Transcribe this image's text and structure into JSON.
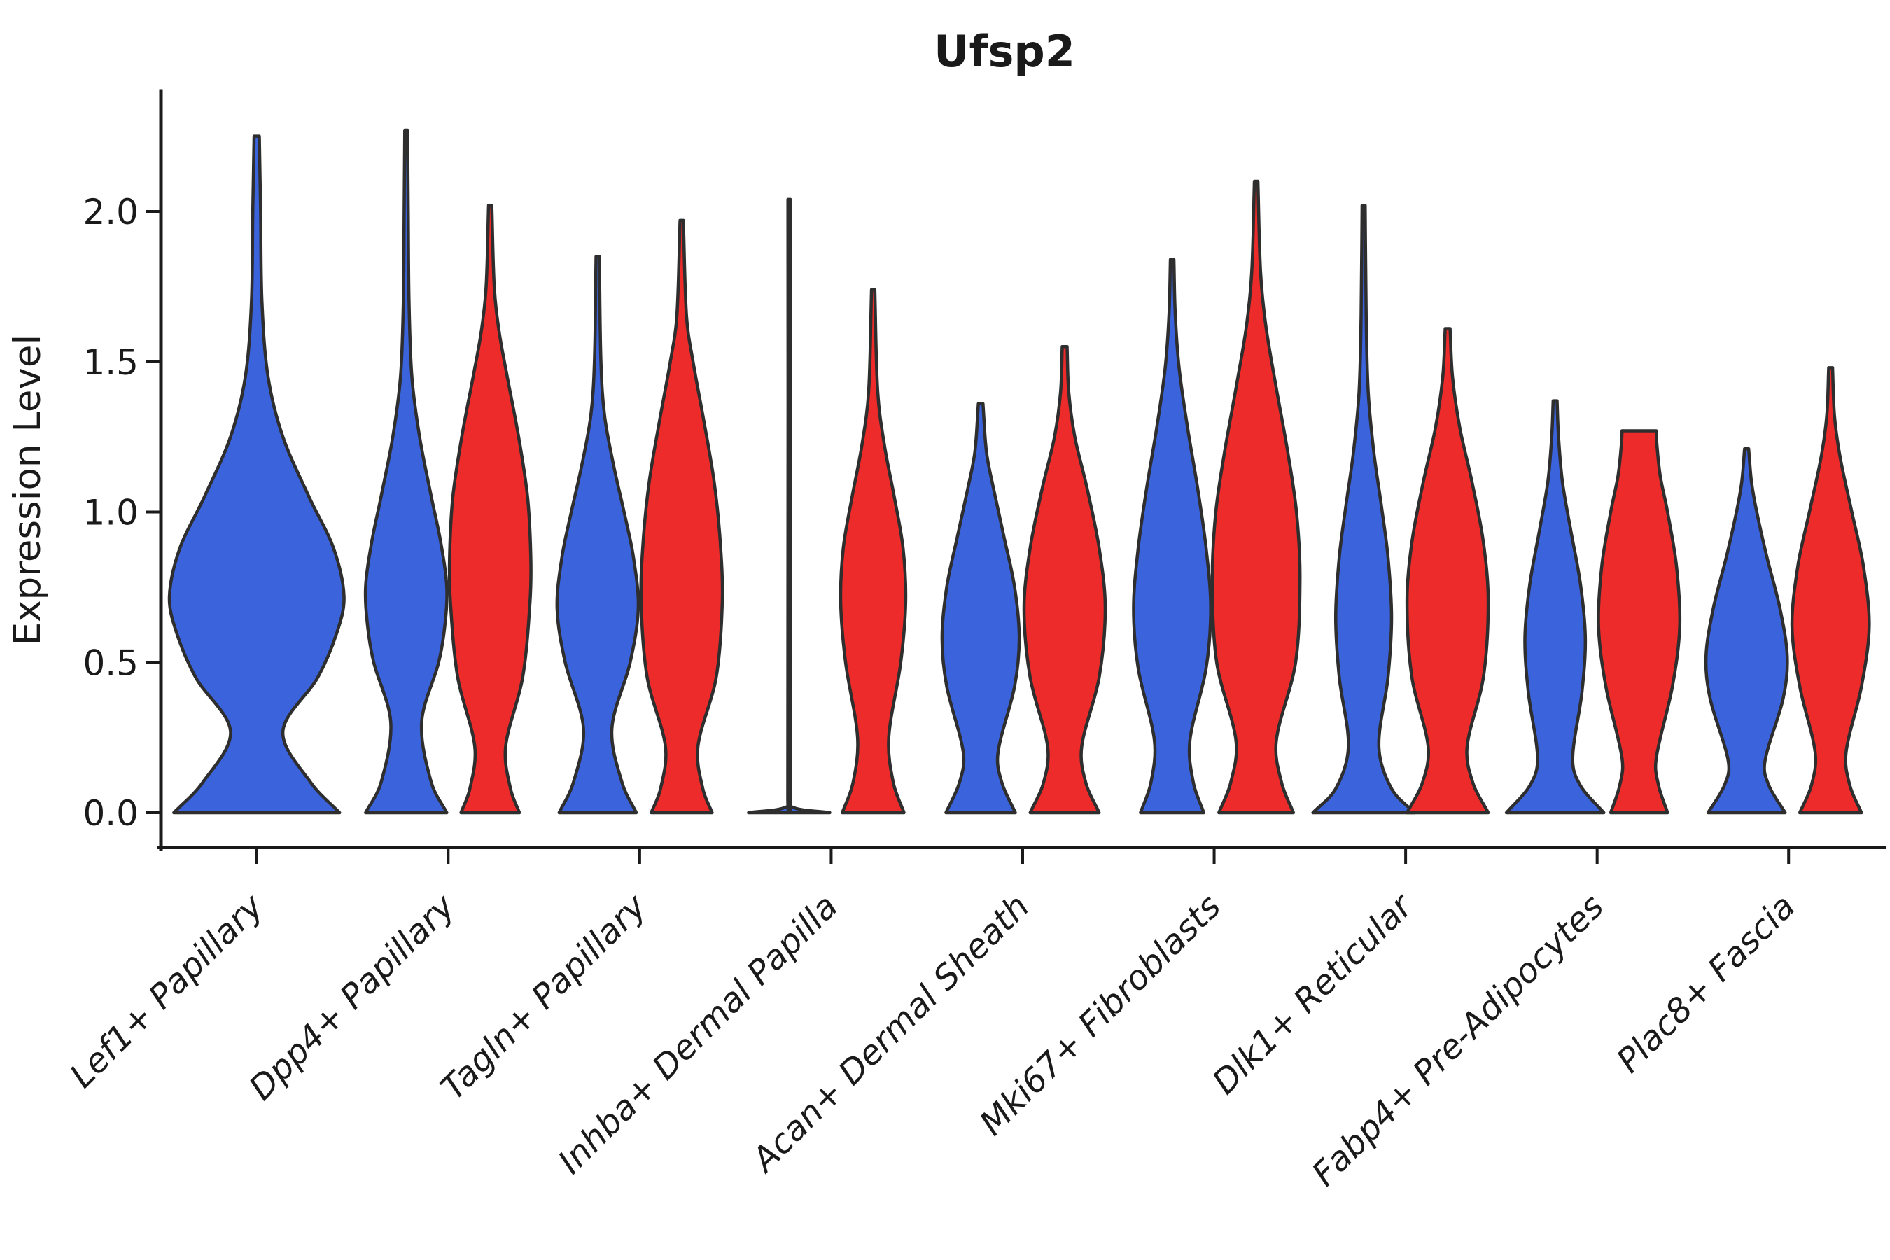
{
  "title": "Ufsp2",
  "axes": {
    "ylabel": "Expression Level",
    "y_ticks": [
      {
        "label": "0.0",
        "value": 0.0
      },
      {
        "label": "0.5",
        "value": 0.5
      },
      {
        "label": "1.0",
        "value": 1.0
      },
      {
        "label": "1.5",
        "value": 1.5
      },
      {
        "label": "2.0",
        "value": 2.0
      }
    ],
    "x_tick_rotation_deg": 45
  },
  "colors": {
    "series_blue": "#3B63DC",
    "series_red": "#EE2B2B",
    "outline": "#2e2e2e",
    "axis": "#1a1a1a"
  },
  "chart_data": {
    "type": "violin",
    "title": "Ufsp2",
    "ylabel": "Expression Level",
    "ylim": [
      0,
      2.42
    ],
    "grid": false,
    "legend": "none",
    "categories": [
      "Lef1+ Papillary",
      "Dpp4+ Papillary",
      "Tagln+ Papillary",
      "Inhba+ Dermal Papilla",
      "Acan+ Dermal Sheath",
      "Mki67+ Fibroblasts",
      "Dlk1+ Reticular",
      "Fabp4+ Pre-Adipocytes",
      "Plac8+ Fascia"
    ],
    "series_names": [
      "blue",
      "red"
    ],
    "violins": [
      {
        "category": "Lef1+ Papillary",
        "group_index": 0,
        "series": "a",
        "single": true,
        "width_scale": 2.15,
        "max_expression": 2.25,
        "profile": [
          [
            0,
            0.95
          ],
          [
            0.1,
            0.62
          ],
          [
            0.27,
            0.3
          ],
          [
            0.45,
            0.7
          ],
          [
            0.6,
            0.92
          ],
          [
            0.72,
            1.0
          ],
          [
            0.88,
            0.88
          ],
          [
            1.05,
            0.6
          ],
          [
            1.25,
            0.3
          ],
          [
            1.45,
            0.13
          ],
          [
            1.7,
            0.06
          ],
          [
            2.0,
            0.045
          ],
          [
            2.25,
            0.03
          ]
        ]
      },
      {
        "category": "Dpp4+ Papillary",
        "group_index": 1,
        "series": "a",
        "max_expression": 2.27,
        "profile": [
          [
            0,
            1.0
          ],
          [
            0.1,
            0.62
          ],
          [
            0.3,
            0.38
          ],
          [
            0.5,
            0.8
          ],
          [
            0.62,
            0.95
          ],
          [
            0.75,
            1.0
          ],
          [
            0.9,
            0.85
          ],
          [
            1.05,
            0.62
          ],
          [
            1.25,
            0.33
          ],
          [
            1.45,
            0.14
          ],
          [
            1.7,
            0.07
          ],
          [
            2.0,
            0.05
          ],
          [
            2.27,
            0.035
          ]
        ]
      },
      {
        "category": "Dpp4+ Papillary",
        "group_index": 1,
        "series": "b",
        "max_expression": 2.02,
        "profile": [
          [
            0,
            0.72
          ],
          [
            0.08,
            0.5
          ],
          [
            0.22,
            0.38
          ],
          [
            0.45,
            0.8
          ],
          [
            0.7,
            0.98
          ],
          [
            0.85,
            1.0
          ],
          [
            1.05,
            0.92
          ],
          [
            1.25,
            0.7
          ],
          [
            1.45,
            0.42
          ],
          [
            1.6,
            0.22
          ],
          [
            1.75,
            0.1
          ],
          [
            2.02,
            0.04
          ]
        ]
      },
      {
        "category": "Tagln+ Papillary",
        "group_index": 2,
        "series": "a",
        "max_expression": 1.85,
        "profile": [
          [
            0,
            0.95
          ],
          [
            0.1,
            0.6
          ],
          [
            0.28,
            0.35
          ],
          [
            0.5,
            0.8
          ],
          [
            0.68,
            1.0
          ],
          [
            0.85,
            0.88
          ],
          [
            1.0,
            0.65
          ],
          [
            1.15,
            0.4
          ],
          [
            1.32,
            0.17
          ],
          [
            1.5,
            0.08
          ],
          [
            1.85,
            0.04
          ]
        ]
      },
      {
        "category": "Tagln+ Papillary",
        "group_index": 2,
        "series": "b",
        "max_expression": 1.97,
        "profile": [
          [
            0,
            0.75
          ],
          [
            0.08,
            0.52
          ],
          [
            0.22,
            0.4
          ],
          [
            0.45,
            0.85
          ],
          [
            0.7,
            1.0
          ],
          [
            0.9,
            0.95
          ],
          [
            1.1,
            0.8
          ],
          [
            1.3,
            0.55
          ],
          [
            1.5,
            0.28
          ],
          [
            1.65,
            0.12
          ],
          [
            1.97,
            0.04
          ]
        ]
      },
      {
        "category": "Inhba+ Dermal Papilla",
        "group_index": 3,
        "series": "a",
        "degenerate": true,
        "max_expression": 2.04,
        "profile": [
          [
            0,
            1.0
          ],
          [
            0.018,
            0.1
          ],
          [
            0.06,
            0.034
          ],
          [
            2.04,
            0.03
          ]
        ]
      },
      {
        "category": "Inhba+ Dermal Papilla",
        "group_index": 3,
        "series": "b",
        "width_scale": 0.8,
        "max_expression": 1.74,
        "profile": [
          [
            0,
            0.95
          ],
          [
            0.1,
            0.62
          ],
          [
            0.25,
            0.48
          ],
          [
            0.5,
            0.85
          ],
          [
            0.7,
            1.0
          ],
          [
            0.88,
            0.92
          ],
          [
            1.05,
            0.65
          ],
          [
            1.22,
            0.35
          ],
          [
            1.4,
            0.14
          ],
          [
            1.74,
            0.05
          ]
        ]
      },
      {
        "category": "Acan+ Dermal Sheath",
        "group_index": 4,
        "series": "a",
        "width_scale": 0.95,
        "max_expression": 1.36,
        "profile": [
          [
            0,
            0.9
          ],
          [
            0.1,
            0.55
          ],
          [
            0.2,
            0.45
          ],
          [
            0.42,
            0.88
          ],
          [
            0.58,
            1.0
          ],
          [
            0.75,
            0.88
          ],
          [
            0.92,
            0.6
          ],
          [
            1.08,
            0.33
          ],
          [
            1.2,
            0.15
          ],
          [
            1.36,
            0.06
          ]
        ]
      },
      {
        "category": "Acan+ Dermal Sheath",
        "group_index": 4,
        "series": "b",
        "max_expression": 1.55,
        "profile": [
          [
            0,
            0.85
          ],
          [
            0.1,
            0.52
          ],
          [
            0.22,
            0.42
          ],
          [
            0.45,
            0.85
          ],
          [
            0.68,
            1.0
          ],
          [
            0.88,
            0.85
          ],
          [
            1.08,
            0.55
          ],
          [
            1.25,
            0.25
          ],
          [
            1.4,
            0.1
          ],
          [
            1.55,
            0.06
          ]
        ]
      },
      {
        "category": "Mki67+ Fibroblasts",
        "group_index": 5,
        "series": "a",
        "width_scale": 0.95,
        "max_expression": 1.84,
        "profile": [
          [
            0,
            0.82
          ],
          [
            0.1,
            0.55
          ],
          [
            0.24,
            0.46
          ],
          [
            0.48,
            0.88
          ],
          [
            0.68,
            1.0
          ],
          [
            0.88,
            0.88
          ],
          [
            1.08,
            0.66
          ],
          [
            1.28,
            0.4
          ],
          [
            1.48,
            0.18
          ],
          [
            1.66,
            0.08
          ],
          [
            1.84,
            0.045
          ]
        ]
      },
      {
        "category": "Mki67+ Fibroblasts",
        "group_index": 5,
        "series": "b",
        "width_scale": 1.08,
        "max_expression": 2.1,
        "profile": [
          [
            0,
            0.85
          ],
          [
            0.1,
            0.58
          ],
          [
            0.24,
            0.46
          ],
          [
            0.5,
            0.9
          ],
          [
            0.78,
            1.0
          ],
          [
            1.0,
            0.92
          ],
          [
            1.2,
            0.72
          ],
          [
            1.42,
            0.45
          ],
          [
            1.62,
            0.22
          ],
          [
            1.8,
            0.1
          ],
          [
            2.1,
            0.04
          ]
        ]
      },
      {
        "category": "Dlk1+ Reticular",
        "group_index": 6,
        "series": "a",
        "width_scale": 1.25,
        "max_expression": 2.02,
        "profile": [
          [
            0,
            1.0
          ],
          [
            0.08,
            0.55
          ],
          [
            0.22,
            0.3
          ],
          [
            0.45,
            0.48
          ],
          [
            0.65,
            0.55
          ],
          [
            0.85,
            0.48
          ],
          [
            1.02,
            0.35
          ],
          [
            1.2,
            0.2
          ],
          [
            1.4,
            0.09
          ],
          [
            1.65,
            0.05
          ],
          [
            2.02,
            0.03
          ]
        ]
      },
      {
        "category": "Dlk1+ Reticular",
        "group_index": 6,
        "series": "b",
        "max_expression": 1.61,
        "profile": [
          [
            0,
            1.0
          ],
          [
            0.1,
            0.62
          ],
          [
            0.22,
            0.48
          ],
          [
            0.45,
            0.88
          ],
          [
            0.7,
            1.0
          ],
          [
            0.9,
            0.88
          ],
          [
            1.1,
            0.6
          ],
          [
            1.28,
            0.3
          ],
          [
            1.45,
            0.12
          ],
          [
            1.61,
            0.06
          ]
        ]
      },
      {
        "category": "Fabp4+ Pre-Adipocytes",
        "group_index": 7,
        "series": "a",
        "width_scale": 1.2,
        "max_expression": 1.37,
        "profile": [
          [
            0,
            1.0
          ],
          [
            0.09,
            0.52
          ],
          [
            0.18,
            0.36
          ],
          [
            0.4,
            0.55
          ],
          [
            0.58,
            0.62
          ],
          [
            0.76,
            0.52
          ],
          [
            0.94,
            0.32
          ],
          [
            1.1,
            0.15
          ],
          [
            1.25,
            0.07
          ],
          [
            1.37,
            0.04
          ]
        ]
      },
      {
        "category": "Fabp4+ Pre-Adipocytes",
        "group_index": 7,
        "series": "b",
        "flat_top": true,
        "max_expression": 1.27,
        "profile": [
          [
            0,
            0.7
          ],
          [
            0.09,
            0.48
          ],
          [
            0.18,
            0.42
          ],
          [
            0.42,
            0.82
          ],
          [
            0.62,
            1.0
          ],
          [
            0.82,
            0.92
          ],
          [
            1.0,
            0.7
          ],
          [
            1.12,
            0.52
          ],
          [
            1.22,
            0.44
          ],
          [
            1.27,
            0.42
          ]
        ]
      },
      {
        "category": "Plac8+ Fascia",
        "group_index": 8,
        "series": "a",
        "max_expression": 1.21,
        "profile": [
          [
            0,
            0.95
          ],
          [
            0.09,
            0.55
          ],
          [
            0.17,
            0.45
          ],
          [
            0.38,
            0.9
          ],
          [
            0.52,
            1.0
          ],
          [
            0.68,
            0.82
          ],
          [
            0.85,
            0.5
          ],
          [
            1.0,
            0.25
          ],
          [
            1.1,
            0.12
          ],
          [
            1.21,
            0.05
          ]
        ]
      },
      {
        "category": "Plac8+ Fascia",
        "group_index": 8,
        "series": "b",
        "width_scale": 0.95,
        "max_expression": 1.48,
        "profile": [
          [
            0,
            0.8
          ],
          [
            0.09,
            0.5
          ],
          [
            0.2,
            0.4
          ],
          [
            0.42,
            0.8
          ],
          [
            0.62,
            1.0
          ],
          [
            0.82,
            0.85
          ],
          [
            1.0,
            0.55
          ],
          [
            1.18,
            0.25
          ],
          [
            1.32,
            0.1
          ],
          [
            1.48,
            0.05
          ]
        ]
      }
    ]
  }
}
